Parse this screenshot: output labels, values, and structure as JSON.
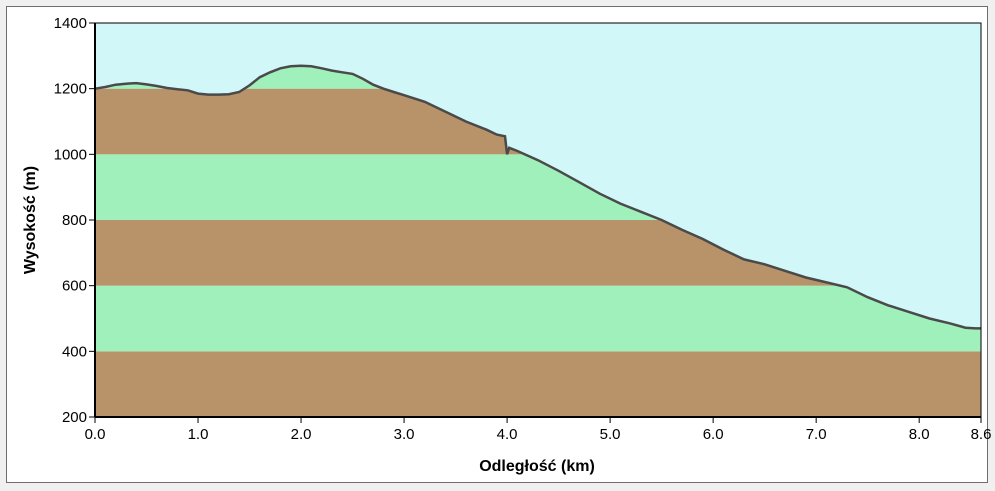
{
  "chart_data": {
    "type": "area",
    "xlabel": "Odległość  (km)",
    "ylabel": "Wysokość (m)",
    "xlim": [
      0,
      8.6
    ],
    "ylim": [
      200,
      1400
    ],
    "x_ticks": [
      0,
      1,
      2,
      3,
      4,
      5,
      6,
      7,
      8,
      8.6
    ],
    "x_tick_labels": [
      "0.0",
      "1.0",
      "2.0",
      "3.0",
      "4.0",
      "5.0",
      "6.0",
      "7.0",
      "8.0",
      "8.6"
    ],
    "y_ticks": [
      200,
      400,
      600,
      800,
      1000,
      1200,
      1400
    ],
    "y_tick_labels": [
      "200",
      "400",
      "600",
      "800",
      "1000",
      "1200",
      "1400"
    ],
    "bands": [
      {
        "from": 200,
        "to": 400,
        "color": "#b8936a"
      },
      {
        "from": 400,
        "to": 600,
        "color": "#9ff0bb"
      },
      {
        "from": 600,
        "to": 800,
        "color": "#b8936a"
      },
      {
        "from": 800,
        "to": 1000,
        "color": "#9ff0bb"
      },
      {
        "from": 1000,
        "to": 1200,
        "color": "#b8936a"
      },
      {
        "from": 1200,
        "to": 1400,
        "color": "#9ff0bb"
      }
    ],
    "sky_color": "#d2f7f9",
    "line_color": "#4a4a4a",
    "x": [
      0,
      0.1,
      0.2,
      0.3,
      0.4,
      0.5,
      0.6,
      0.7,
      0.8,
      0.9,
      1.0,
      1.1,
      1.2,
      1.3,
      1.4,
      1.5,
      1.6,
      1.7,
      1.8,
      1.9,
      2.0,
      2.1,
      2.2,
      2.3,
      2.4,
      2.5,
      2.6,
      2.7,
      2.8,
      2.9,
      3.0,
      3.2,
      3.4,
      3.6,
      3.8,
      3.9,
      3.98,
      4.0,
      4.02,
      4.1,
      4.3,
      4.5,
      4.7,
      4.9,
      5.1,
      5.3,
      5.5,
      5.7,
      5.9,
      6.1,
      6.3,
      6.5,
      6.7,
      6.9,
      7.1,
      7.3,
      7.5,
      7.7,
      7.9,
      8.1,
      8.3,
      8.45,
      8.55,
      8.6
    ],
    "y": [
      1200,
      1205,
      1212,
      1215,
      1217,
      1213,
      1208,
      1202,
      1198,
      1195,
      1185,
      1182,
      1182,
      1183,
      1190,
      1210,
      1235,
      1250,
      1262,
      1268,
      1270,
      1268,
      1262,
      1255,
      1250,
      1245,
      1230,
      1212,
      1200,
      1190,
      1180,
      1160,
      1130,
      1100,
      1075,
      1060,
      1055,
      1000,
      1020,
      1010,
      982,
      950,
      915,
      880,
      850,
      825,
      800,
      770,
      742,
      710,
      680,
      665,
      645,
      625,
      610,
      595,
      565,
      540,
      520,
      500,
      485,
      472,
      470,
      470
    ]
  }
}
